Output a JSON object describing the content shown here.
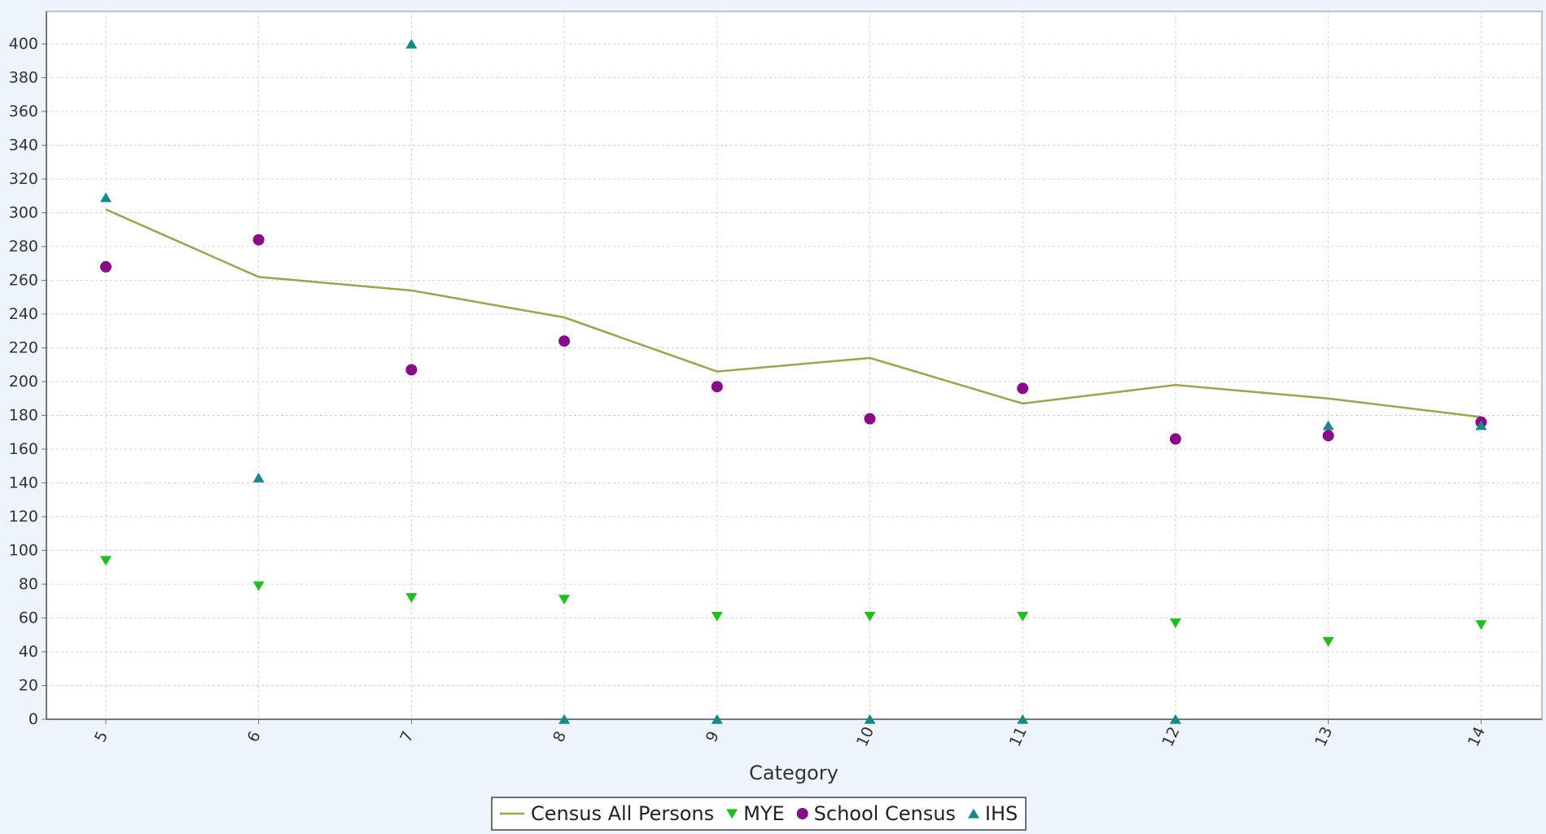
{
  "chart_data": {
    "type": "line",
    "title": "",
    "xlabel": "Category",
    "ylabel": "",
    "categories": [
      "5",
      "6",
      "7",
      "8",
      "9",
      "10",
      "11",
      "12",
      "13",
      "14"
    ],
    "ylim": [
      0,
      420
    ],
    "yticks": [
      0,
      20,
      40,
      60,
      80,
      100,
      120,
      140,
      160,
      180,
      200,
      220,
      240,
      260,
      280,
      300,
      320,
      340,
      360,
      380,
      400
    ],
    "grid": true,
    "legend_position": "bottom",
    "series": [
      {
        "name": "Census All Persons",
        "type": "line",
        "marker": "none",
        "color": "#a2a24a",
        "values": [
          302,
          262,
          254,
          238,
          206,
          214,
          187,
          198,
          190,
          179
        ]
      },
      {
        "name": "MYE",
        "type": "scatter",
        "marker": "triangle-down",
        "color": "#1ec01e",
        "values": [
          94,
          79,
          72,
          71,
          61,
          61,
          61,
          57,
          46,
          56
        ]
      },
      {
        "name": "School Census",
        "type": "scatter",
        "marker": "circle",
        "color": "#8a0a8a",
        "values": [
          268,
          284,
          207,
          224,
          197,
          178,
          196,
          166,
          168,
          176
        ]
      },
      {
        "name": "IHS",
        "type": "scatter",
        "marker": "triangle-up",
        "color": "#158a8a",
        "values": [
          309,
          143,
          400,
          0,
          0,
          0,
          0,
          0,
          174,
          174
        ]
      }
    ]
  }
}
